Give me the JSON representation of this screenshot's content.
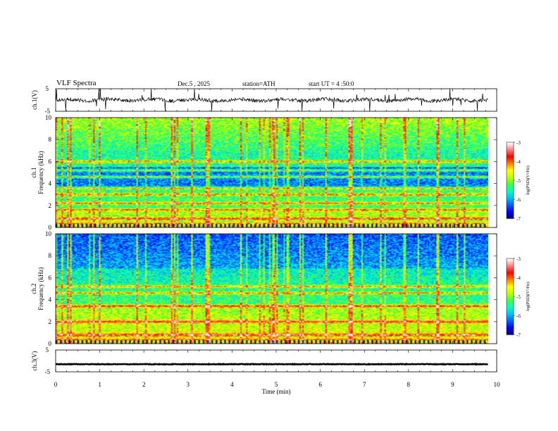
{
  "header": {
    "title": "VLF Spectra",
    "date": "Dec.5 , 2025",
    "station": "station=ATH",
    "start": "start UT = 4 :50:0"
  },
  "colors": {
    "palette": [
      "#000000",
      "#00008a",
      "#0000ff",
      "#0060ff",
      "#00c0ff",
      "#00ffc0",
      "#40ff40",
      "#c0ff00",
      "#ffff00",
      "#ff8000",
      "#ff0000",
      "#ff8080",
      "#ffffff"
    ]
  },
  "chart_data": [
    {
      "type": "line",
      "name": "ch1-waveform",
      "ylabel": "ch.1(V)",
      "ylim": [
        -5,
        5
      ],
      "yticks": [
        "5",
        "-5"
      ],
      "baseline": 0,
      "x_range_min": [
        0,
        9.8
      ]
    },
    {
      "type": "heatmap",
      "name": "ch1-spectrogram",
      "ylabel": "ch.1 Frequency (kHz)",
      "ylim": [
        0,
        10
      ],
      "yticks": [
        "0",
        "2",
        "4",
        "6",
        "8",
        "10"
      ],
      "x_range_min": [
        0,
        9.8
      ],
      "colorbar": {
        "label": "log(PSD)(V²/Hz)",
        "ticks": [
          "-3",
          "-4",
          "-5",
          "-6",
          "-7"
        ],
        "range": [
          -7,
          -3
        ]
      },
      "bands_khz": [
        0.3,
        0.8,
        1.6,
        2.2,
        3.0,
        3.6,
        4.6,
        5.2,
        6.0
      ]
    },
    {
      "type": "heatmap",
      "name": "ch2-spectrogram",
      "ylabel": "ch.2 Frequency (kHz)",
      "ylim": [
        0,
        10
      ],
      "yticks": [
        "0",
        "2",
        "4",
        "6",
        "8",
        "10"
      ],
      "x_range_min": [
        0,
        9.8
      ],
      "colorbar": {
        "label": "log(PSD)(V²/Hz)",
        "ticks": [
          "-3",
          "-4",
          "-5",
          "-6",
          "-7"
        ],
        "range": [
          -7,
          -3
        ]
      },
      "bands_khz": [
        0.3,
        0.8,
        2.0,
        3.4,
        4.6,
        5.2
      ]
    },
    {
      "type": "line",
      "name": "ch3-waveform",
      "ylabel": "ch.3(V)",
      "ylim": [
        -5,
        5
      ],
      "yticks": [
        "5",
        "-5"
      ],
      "baseline": -1.5,
      "x_range_min": [
        0,
        9.8
      ]
    }
  ],
  "xaxis": {
    "label": "Time (min)",
    "ticks": [
      "0",
      "1",
      "2",
      "3",
      "4",
      "5",
      "6",
      "7",
      "8",
      "9",
      "10"
    ],
    "range": [
      0,
      10
    ]
  }
}
